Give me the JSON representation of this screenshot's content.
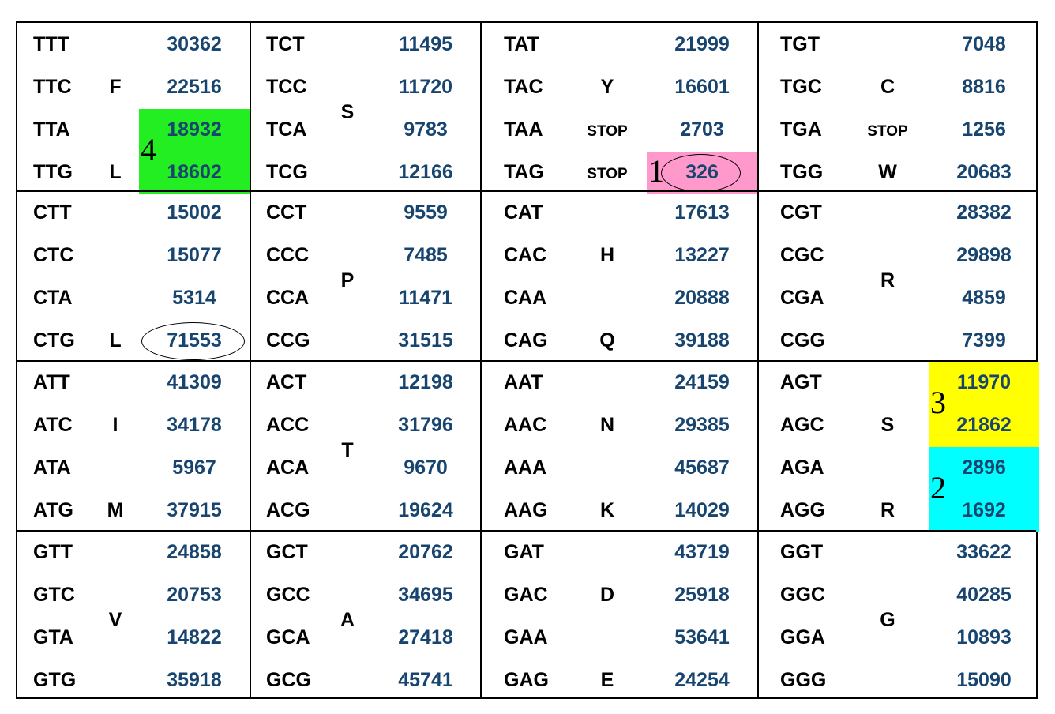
{
  "columns": [
    {
      "rows": [
        {
          "cells": [
            {
              "codon": "TTT",
              "count": "30362"
            },
            {
              "codon": "TTC",
              "count": "22516"
            },
            {
              "codon": "TTA",
              "count": "18932"
            },
            {
              "codon": "TTG",
              "count": "18602"
            }
          ],
          "aa": [
            {
              "label": "F",
              "pos": 1
            },
            {
              "label": "L",
              "pos": 3
            }
          ]
        },
        {
          "cells": [
            {
              "codon": "CTT",
              "count": "15002"
            },
            {
              "codon": "CTC",
              "count": "15077"
            },
            {
              "codon": "CTA",
              "count": "5314"
            },
            {
              "codon": "CTG",
              "count": "71553"
            }
          ],
          "aa": [
            {
              "label": "L",
              "pos": 3
            }
          ]
        },
        {
          "cells": [
            {
              "codon": "ATT",
              "count": "41309"
            },
            {
              "codon": "ATC",
              "count": "34178"
            },
            {
              "codon": "ATA",
              "count": "5967"
            },
            {
              "codon": "ATG",
              "count": "37915"
            }
          ],
          "aa": [
            {
              "label": "I",
              "pos": 1
            },
            {
              "label": "M",
              "pos": 3
            }
          ]
        },
        {
          "cells": [
            {
              "codon": "GTT",
              "count": "24858"
            },
            {
              "codon": "GTC",
              "count": "20753"
            },
            {
              "codon": "GTA",
              "count": "14822"
            },
            {
              "codon": "GTG",
              "count": "35918"
            }
          ],
          "aa": [
            {
              "label": "V",
              "pos": 1.6
            }
          ]
        }
      ]
    },
    {
      "rows": [
        {
          "cells": [
            {
              "codon": "TCT",
              "count": "11495"
            },
            {
              "codon": "TCC",
              "count": "11720"
            },
            {
              "codon": "TCA",
              "count": "9783"
            },
            {
              "codon": "TCG",
              "count": "12166"
            }
          ],
          "aa": [
            {
              "label": "S",
              "pos": 1.6
            }
          ]
        },
        {
          "cells": [
            {
              "codon": "CCT",
              "count": "9559"
            },
            {
              "codon": "CCC",
              "count": "7485"
            },
            {
              "codon": "CCA",
              "count": "11471"
            },
            {
              "codon": "CCG",
              "count": "31515"
            }
          ],
          "aa": [
            {
              "label": "P",
              "pos": 1.6
            }
          ]
        },
        {
          "cells": [
            {
              "codon": "ACT",
              "count": "12198"
            },
            {
              "codon": "ACC",
              "count": "31796"
            },
            {
              "codon": "ACA",
              "count": "9670"
            },
            {
              "codon": "ACG",
              "count": "19624"
            }
          ],
          "aa": [
            {
              "label": "T",
              "pos": 1.6
            }
          ]
        },
        {
          "cells": [
            {
              "codon": "GCT",
              "count": "20762"
            },
            {
              "codon": "GCC",
              "count": "34695"
            },
            {
              "codon": "GCA",
              "count": "27418"
            },
            {
              "codon": "GCG",
              "count": "45741"
            }
          ],
          "aa": [
            {
              "label": "A",
              "pos": 1.6
            }
          ]
        }
      ]
    },
    {
      "rows": [
        {
          "cells": [
            {
              "codon": "TAT",
              "count": "21999"
            },
            {
              "codon": "TAC",
              "count": "16601"
            },
            {
              "codon": "TAA",
              "count": "2703"
            },
            {
              "codon": "TAG",
              "count": "326"
            }
          ],
          "aa": [
            {
              "label": "Y",
              "pos": 1
            },
            {
              "label": "STOP",
              "pos": 2,
              "small": true
            },
            {
              "label": "STOP",
              "pos": 3,
              "small": true
            }
          ]
        },
        {
          "cells": [
            {
              "codon": "CAT",
              "count": "17613"
            },
            {
              "codon": "CAC",
              "count": "13227"
            },
            {
              "codon": "CAA",
              "count": "20888"
            },
            {
              "codon": "CAG",
              "count": "39188"
            }
          ],
          "aa": [
            {
              "label": "H",
              "pos": 1
            },
            {
              "label": "Q",
              "pos": 3
            }
          ]
        },
        {
          "cells": [
            {
              "codon": "AAT",
              "count": "24159"
            },
            {
              "codon": "AAC",
              "count": "29385"
            },
            {
              "codon": "AAA",
              "count": "45687"
            },
            {
              "codon": "AAG",
              "count": "14029"
            }
          ],
          "aa": [
            {
              "label": "N",
              "pos": 1
            },
            {
              "label": "K",
              "pos": 3
            }
          ]
        },
        {
          "cells": [
            {
              "codon": "GAT",
              "count": "43719"
            },
            {
              "codon": "GAC",
              "count": "25918"
            },
            {
              "codon": "GAA",
              "count": "53641"
            },
            {
              "codon": "GAG",
              "count": "24254"
            }
          ],
          "aa": [
            {
              "label": "D",
              "pos": 1
            },
            {
              "label": "E",
              "pos": 3
            }
          ]
        }
      ]
    },
    {
      "rows": [
        {
          "cells": [
            {
              "codon": "TGT",
              "count": "7048"
            },
            {
              "codon": "TGC",
              "count": "8816"
            },
            {
              "codon": "TGA",
              "count": "1256"
            },
            {
              "codon": "TGG",
              "count": "20683"
            }
          ],
          "aa": [
            {
              "label": "C",
              "pos": 1
            },
            {
              "label": "STOP",
              "pos": 2,
              "small": true
            },
            {
              "label": "W",
              "pos": 3
            }
          ]
        },
        {
          "cells": [
            {
              "codon": "CGT",
              "count": "28382"
            },
            {
              "codon": "CGC",
              "count": "29898"
            },
            {
              "codon": "CGA",
              "count": "4859"
            },
            {
              "codon": "CGG",
              "count": "7399"
            }
          ],
          "aa": [
            {
              "label": "R",
              "pos": 1.6
            }
          ]
        },
        {
          "cells": [
            {
              "codon": "AGT",
              "count": "11970"
            },
            {
              "codon": "AGC",
              "count": "21862"
            },
            {
              "codon": "AGA",
              "count": "2896"
            },
            {
              "codon": "AGG",
              "count": "1692"
            }
          ],
          "aa": [
            {
              "label": "S",
              "pos": 1
            },
            {
              "label": "R",
              "pos": 3
            }
          ]
        },
        {
          "cells": [
            {
              "codon": "GGT",
              "count": "33622"
            },
            {
              "codon": "GGC",
              "count": "40285"
            },
            {
              "codon": "GGA",
              "count": "10893"
            },
            {
              "codon": "GGG",
              "count": "15090"
            }
          ],
          "aa": [
            {
              "label": "G",
              "pos": 1.6
            }
          ]
        }
      ]
    }
  ],
  "highlights": [
    {
      "column": 0,
      "row": 0,
      "from": 2,
      "to": 3,
      "color": "#22ee22",
      "mark": "4"
    },
    {
      "column": 2,
      "row": 0,
      "from": 3,
      "to": 3,
      "color": "#ff99cc",
      "mark": "1"
    },
    {
      "column": 3,
      "row": 2,
      "from": 0,
      "to": 1,
      "color": "#ffff00",
      "mark": "3"
    },
    {
      "column": 3,
      "row": 2,
      "from": 2,
      "to": 3,
      "color": "#00ffff",
      "mark": "2"
    }
  ],
  "circled": [
    {
      "column": 0,
      "row": 1,
      "line": 3
    },
    {
      "column": 2,
      "row": 0,
      "line": 3
    }
  ],
  "colors": {
    "codon": "#000000",
    "count": "#17456f",
    "border": "#000000"
  }
}
